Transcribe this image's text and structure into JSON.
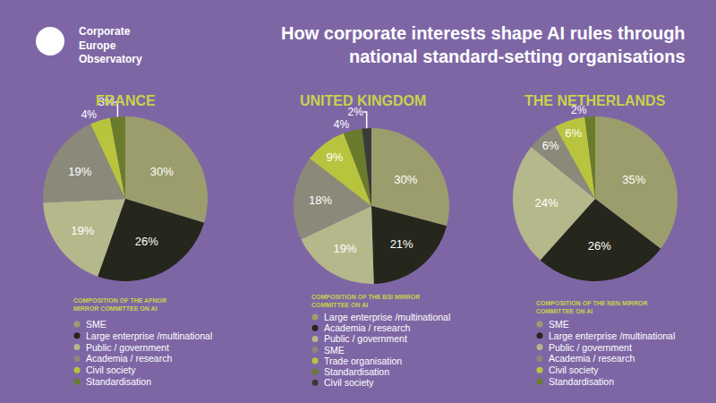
{
  "header": {
    "logo": [
      "Corporate",
      "Europe",
      "Observatory"
    ],
    "title": [
      "How corporate interests shape AI rules through",
      "national standard-setting organisations"
    ]
  },
  "chart_data": [
    {
      "type": "pie",
      "title": "FRANCE",
      "subtitle": [
        "COMPOSITION OF THE AFNOR",
        "MIRROR COMMITTEE ON AI"
      ],
      "categories": [
        "SME",
        "Large enterprise /multinational",
        "Public / government",
        "Academia / research",
        "Civil society",
        "Standardisation"
      ],
      "values": [
        30,
        26,
        19,
        19,
        4,
        3
      ],
      "value_labels": [
        "30%",
        "26%",
        "19%",
        "19%",
        "4%",
        "3%"
      ],
      "colors": [
        "#9c9d6c",
        "#25261c",
        "#b5b88b",
        "#8b897a",
        "#b8c43e",
        "#6a7c2b"
      ],
      "data_labels": true,
      "legend": "bottom"
    },
    {
      "type": "pie",
      "title": "UNITED KINGDOM",
      "subtitle": [
        "COMPOSITION OF THE BSI MIRROR",
        "COMMITTEE ON AI"
      ],
      "categories": [
        "Large enterprise /multinational",
        "Academia / research",
        "Public / government",
        "SME",
        "Trade organisation",
        "Standardisation",
        "Civil society"
      ],
      "values": [
        30,
        21,
        19,
        18,
        9,
        4,
        2
      ],
      "value_labels": [
        "30%",
        "21%",
        "19%",
        "18%",
        "9%",
        "4%",
        "2%"
      ],
      "colors": [
        "#9c9d6c",
        "#25261c",
        "#b5b88b",
        "#8b897a",
        "#b8c43e",
        "#6a7c2b",
        "#3a3a36"
      ],
      "data_labels": true,
      "legend": "bottom"
    },
    {
      "type": "pie",
      "title": "THE NETHERLANDS",
      "subtitle": [
        "COMPOSITION OF THE NEN MIRROR",
        "COMMITTEE ON AI"
      ],
      "categories": [
        "SME",
        "Large enterprise /multinational",
        "Public / government",
        "Academia / research",
        "Civil society",
        "Standardisation"
      ],
      "values": [
        35,
        26,
        24,
        6,
        6,
        2
      ],
      "value_labels": [
        "35%",
        "26%",
        "24%",
        "6%",
        "6%",
        "2%"
      ],
      "colors": [
        "#9c9d6c",
        "#25261c",
        "#b5b88b",
        "#8b897a",
        "#b8c43e",
        "#6a7c2b"
      ],
      "data_labels": true,
      "legend": "bottom"
    }
  ]
}
